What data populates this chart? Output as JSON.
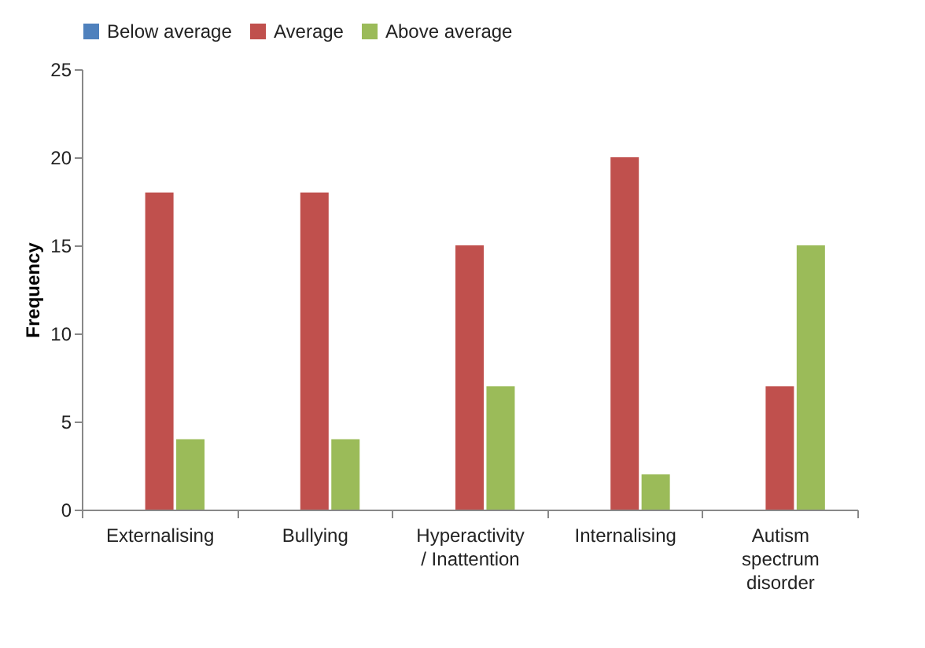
{
  "chart_data": {
    "type": "bar",
    "ylabel": "Frequency",
    "categories": [
      "Externalising",
      "Bullying",
      "Hyperactivity\n/ Inattention",
      "Internalising",
      "Autism\nspectrum\ndisorder"
    ],
    "series": [
      {
        "name": "Below average",
        "color": "#4f81bd",
        "values": [
          0,
          0,
          0,
          0,
          0
        ]
      },
      {
        "name": "Average",
        "color": "#c0504d",
        "values": [
          18,
          18,
          15,
          20,
          7
        ]
      },
      {
        "name": "Above average",
        "color": "#9bbb59",
        "values": [
          4,
          4,
          7,
          2,
          15
        ]
      }
    ],
    "ylim": [
      0,
      25
    ],
    "yticks": [
      0,
      5,
      10,
      15,
      20,
      25
    ],
    "grid": false,
    "legend": "top"
  }
}
